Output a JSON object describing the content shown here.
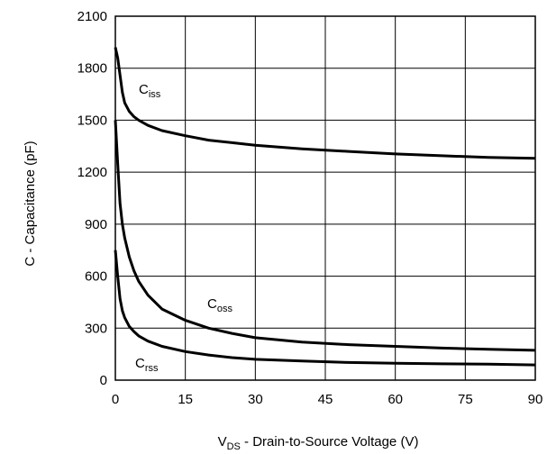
{
  "chart_data": {
    "type": "line",
    "xlabel": {
      "main": "V",
      "sub": "DS",
      "rest": " - Drain-to-Source Voltage (V)"
    },
    "ylabel": "C - Capacitance (pF)",
    "xlim": [
      0,
      90
    ],
    "ylim": [
      0,
      2100
    ],
    "x_ticks": [
      0,
      15,
      30,
      45,
      60,
      75,
      90
    ],
    "y_ticks": [
      0,
      300,
      600,
      900,
      1200,
      1500,
      1800,
      2100
    ],
    "grid": true,
    "series": [
      {
        "name": "Ciss",
        "label_main": "C",
        "label_sub": "iss",
        "x": [
          0,
          0.5,
          1,
          1.5,
          2,
          3,
          4,
          5,
          7,
          10,
          15,
          20,
          25,
          30,
          40,
          50,
          60,
          70,
          80,
          90
        ],
        "y": [
          1920,
          1860,
          1760,
          1660,
          1600,
          1550,
          1520,
          1500,
          1470,
          1440,
          1410,
          1385,
          1370,
          1355,
          1335,
          1320,
          1305,
          1295,
          1285,
          1280
        ]
      },
      {
        "name": "Coss",
        "label_main": "C",
        "label_sub": "oss",
        "x": [
          0,
          0.5,
          1,
          1.5,
          2,
          3,
          4,
          5,
          7,
          10,
          15,
          20,
          25,
          30,
          40,
          50,
          60,
          70,
          80,
          90
        ],
        "y": [
          1500,
          1250,
          1020,
          900,
          820,
          710,
          630,
          570,
          490,
          410,
          345,
          300,
          270,
          245,
          220,
          205,
          195,
          185,
          178,
          172
        ]
      },
      {
        "name": "Crss",
        "label_main": "C",
        "label_sub": "rss",
        "x": [
          0,
          0.5,
          1,
          1.5,
          2,
          3,
          4,
          5,
          7,
          10,
          15,
          20,
          25,
          30,
          40,
          50,
          60,
          70,
          80,
          90
        ],
        "y": [
          750,
          600,
          470,
          400,
          360,
          310,
          280,
          255,
          225,
          195,
          165,
          145,
          130,
          120,
          110,
          102,
          97,
          94,
          92,
          88
        ]
      }
    ]
  }
}
